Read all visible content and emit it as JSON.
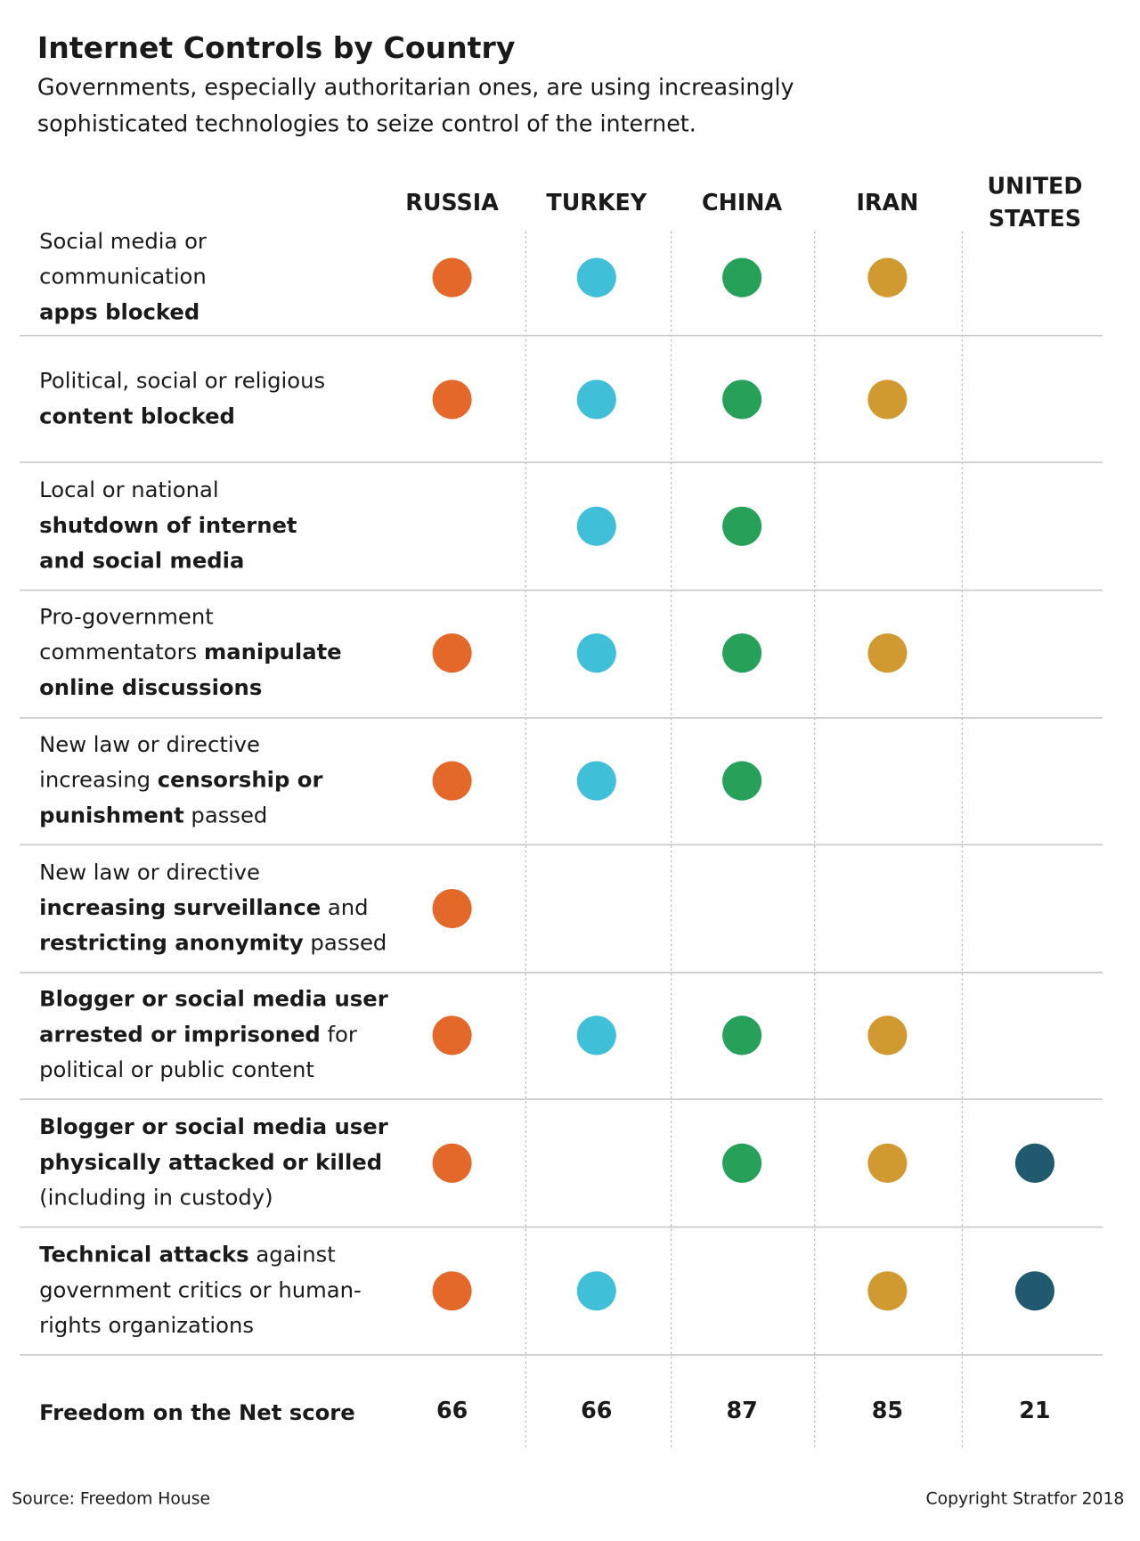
{
  "title": "Internet Controls by Country",
  "subtitle": [
    "Governments, especially authoritarian ones, are using increasingly",
    "sophisticated technologies to seize control of the internet."
  ],
  "columns": [
    {
      "name_lines": [
        "RUSSIA"
      ],
      "color": "#e4682a"
    },
    {
      "name_lines": [
        "TURKEY"
      ],
      "color": "#3fbfd8"
    },
    {
      "name_lines": [
        "CHINA"
      ],
      "color": "#27a05a"
    },
    {
      "name_lines": [
        "IRAN"
      ],
      "color": "#d09a30"
    },
    {
      "name_lines": [
        "UNITED",
        "STATES"
      ],
      "color": "#215a6e"
    }
  ],
  "rows": [
    {
      "label": [
        [
          {
            "text": "Social media or",
            "bold": false
          }
        ],
        [
          {
            "text": "communication",
            "bold": false
          }
        ],
        [
          {
            "text": "apps blocked",
            "bold": true
          }
        ]
      ],
      "marks": [
        true,
        true,
        true,
        true,
        false
      ]
    },
    {
      "label": [
        [
          {
            "text": "Political, social or religious",
            "bold": false
          }
        ],
        [
          {
            "text": "content blocked",
            "bold": true
          }
        ]
      ],
      "marks": [
        true,
        true,
        true,
        true,
        false
      ]
    },
    {
      "label": [
        [
          {
            "text": "Local or national",
            "bold": false
          }
        ],
        [
          {
            "text": "shutdown of internet",
            "bold": true
          }
        ],
        [
          {
            "text": "and social media",
            "bold": true
          }
        ]
      ],
      "marks": [
        false,
        true,
        true,
        false,
        false
      ]
    },
    {
      "label": [
        [
          {
            "text": "Pro-government",
            "bold": false
          }
        ],
        [
          {
            "text": "commentators ",
            "bold": false
          },
          {
            "text": "manipulate",
            "bold": true
          }
        ],
        [
          {
            "text": "online discussions",
            "bold": true
          }
        ]
      ],
      "marks": [
        true,
        true,
        true,
        true,
        false
      ]
    },
    {
      "label": [
        [
          {
            "text": "New law or directive",
            "bold": false
          }
        ],
        [
          {
            "text": "increasing ",
            "bold": false
          },
          {
            "text": "censorship or",
            "bold": true
          }
        ],
        [
          {
            "text": "punishment",
            "bold": true
          },
          {
            "text": " passed",
            "bold": false
          }
        ]
      ],
      "marks": [
        true,
        true,
        true,
        false,
        false
      ]
    },
    {
      "label": [
        [
          {
            "text": "New law or directive",
            "bold": false
          }
        ],
        [
          {
            "text": "increasing surveillance",
            "bold": true
          },
          {
            "text": " and",
            "bold": false
          }
        ],
        [
          {
            "text": "restricting anonymity",
            "bold": true
          },
          {
            "text": " passed",
            "bold": false
          }
        ]
      ],
      "marks": [
        true,
        false,
        false,
        false,
        false
      ]
    },
    {
      "label": [
        [
          {
            "text": "Blogger or social media user",
            "bold": true
          }
        ],
        [
          {
            "text": "arrested or imprisoned",
            "bold": true
          },
          {
            "text": " for",
            "bold": false
          }
        ],
        [
          {
            "text": "political or public content",
            "bold": false
          }
        ]
      ],
      "marks": [
        true,
        true,
        true,
        true,
        false
      ]
    },
    {
      "label": [
        [
          {
            "text": "Blogger or social media user",
            "bold": true
          }
        ],
        [
          {
            "text": "physically attacked or killed",
            "bold": true
          }
        ],
        [
          {
            "text": "(including in custody)",
            "bold": false
          }
        ]
      ],
      "marks": [
        true,
        false,
        true,
        true,
        true
      ]
    },
    {
      "label": [
        [
          {
            "text": "Technical attacks",
            "bold": true
          },
          {
            "text": " against",
            "bold": false
          }
        ],
        [
          {
            "text": "government critics or human-",
            "bold": false
          }
        ],
        [
          {
            "text": "rights organizations",
            "bold": false
          }
        ]
      ],
      "marks": [
        true,
        true,
        false,
        true,
        true
      ]
    }
  ],
  "score_row": {
    "label": "Freedom on the Net score",
    "scores": [
      66,
      66,
      87,
      85,
      21
    ]
  },
  "source": "Source: Freedom House",
  "copyright": "Copyright Stratfor 2018"
}
